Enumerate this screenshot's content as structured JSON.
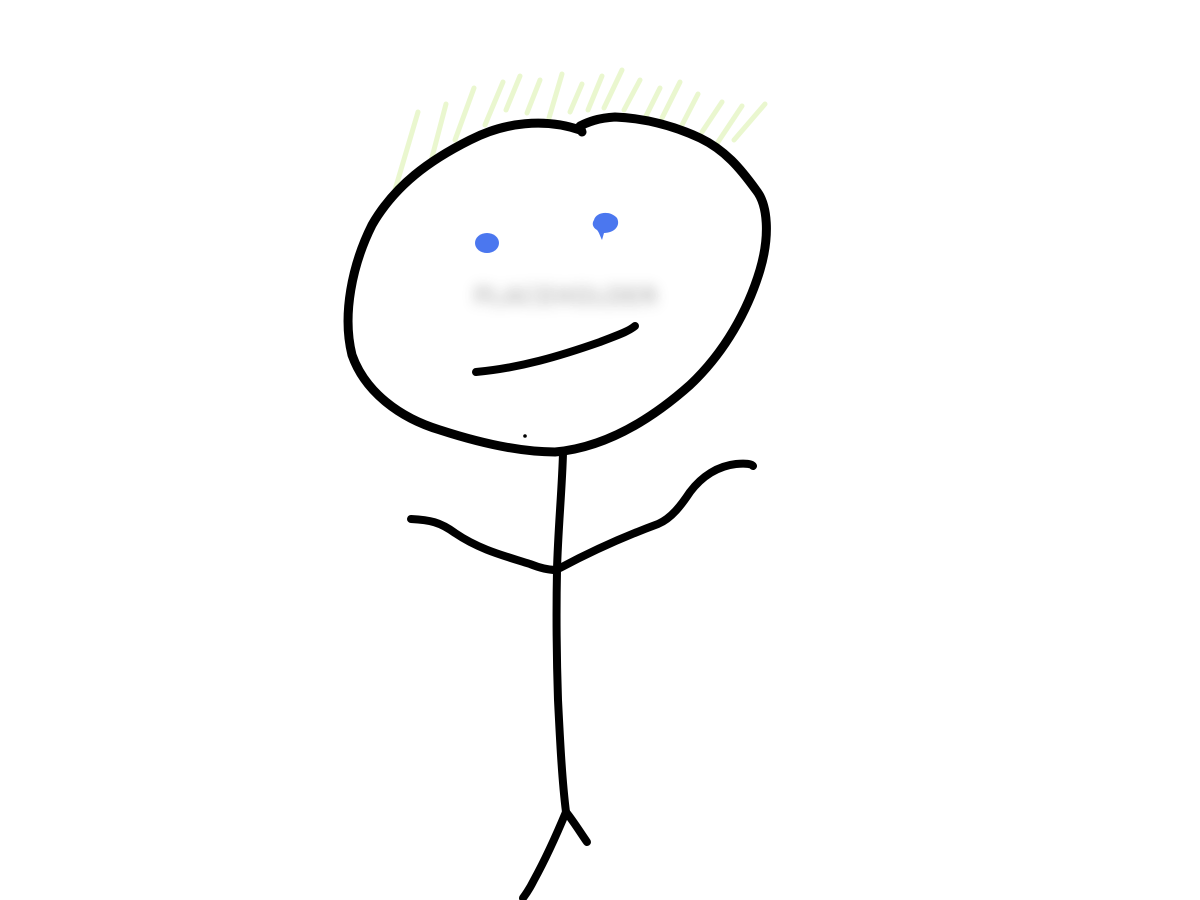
{
  "drawing": {
    "stroke_color": "#000000",
    "hair_color": "#eaf7cf",
    "eye_color": "#4b77ef",
    "background_color": "#ffffff"
  },
  "redacted_label": {
    "text": "PLACEHOLDER"
  }
}
